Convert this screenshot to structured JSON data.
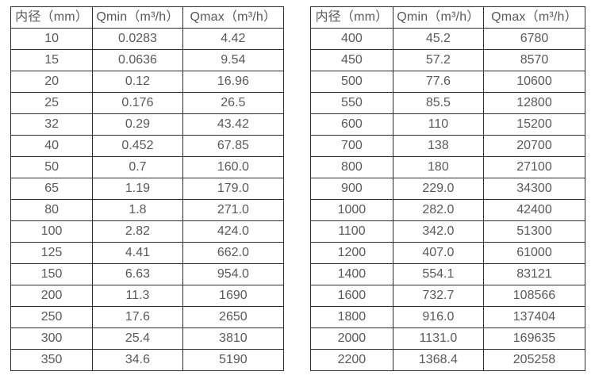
{
  "colors": {
    "background": "#ffffff",
    "border": "#2e2e2e",
    "text": "#595959"
  },
  "left_table": {
    "headers": [
      "内径（mm）",
      "Qmin（m³/h）",
      "Qmax（m³/h）"
    ],
    "rows": [
      [
        "10",
        "0.0283",
        "4.42"
      ],
      [
        "15",
        "0.0636",
        "9.54"
      ],
      [
        "20",
        "0.12",
        "16.96"
      ],
      [
        "25",
        "0.176",
        "26.5"
      ],
      [
        "32",
        "0.29",
        "43.42"
      ],
      [
        "40",
        "0.452",
        "67.85"
      ],
      [
        "50",
        "0.7",
        "160.0"
      ],
      [
        "65",
        "1.19",
        "179.0"
      ],
      [
        "80",
        "1.8",
        "271.0"
      ],
      [
        "100",
        "2.82",
        "424.0"
      ],
      [
        "125",
        "4.41",
        "662.0"
      ],
      [
        "150",
        "6.63",
        "954.0"
      ],
      [
        "200",
        "11.3",
        "1690"
      ],
      [
        "250",
        "17.6",
        "2650"
      ],
      [
        "300",
        "25.4",
        "3810"
      ],
      [
        "350",
        "34.6",
        "5190"
      ]
    ]
  },
  "right_table": {
    "headers": [
      "内径（mm）",
      "Qmin（m³/h）",
      "Qmax（m³/h）"
    ],
    "rows": [
      [
        "400",
        "45.2",
        "6780"
      ],
      [
        "450",
        "57.2",
        "8570"
      ],
      [
        "500",
        "77.6",
        "10600"
      ],
      [
        "550",
        "85.5",
        "12800"
      ],
      [
        "600",
        "110",
        "15200"
      ],
      [
        "700",
        "138",
        "20700"
      ],
      [
        "800",
        "180",
        "27100"
      ],
      [
        "900",
        "229.0",
        "34300"
      ],
      [
        "1000",
        "282.0",
        "42400"
      ],
      [
        "1100",
        "342.0",
        "51300"
      ],
      [
        "1200",
        "407.0",
        "61000"
      ],
      [
        "1400",
        "554.1",
        "83121"
      ],
      [
        "1600",
        "732.7",
        "108566"
      ],
      [
        "1800",
        "916.0",
        "137404"
      ],
      [
        "2000",
        "1131.0",
        "169635"
      ],
      [
        "2200",
        "1368.4",
        "205258"
      ]
    ]
  }
}
